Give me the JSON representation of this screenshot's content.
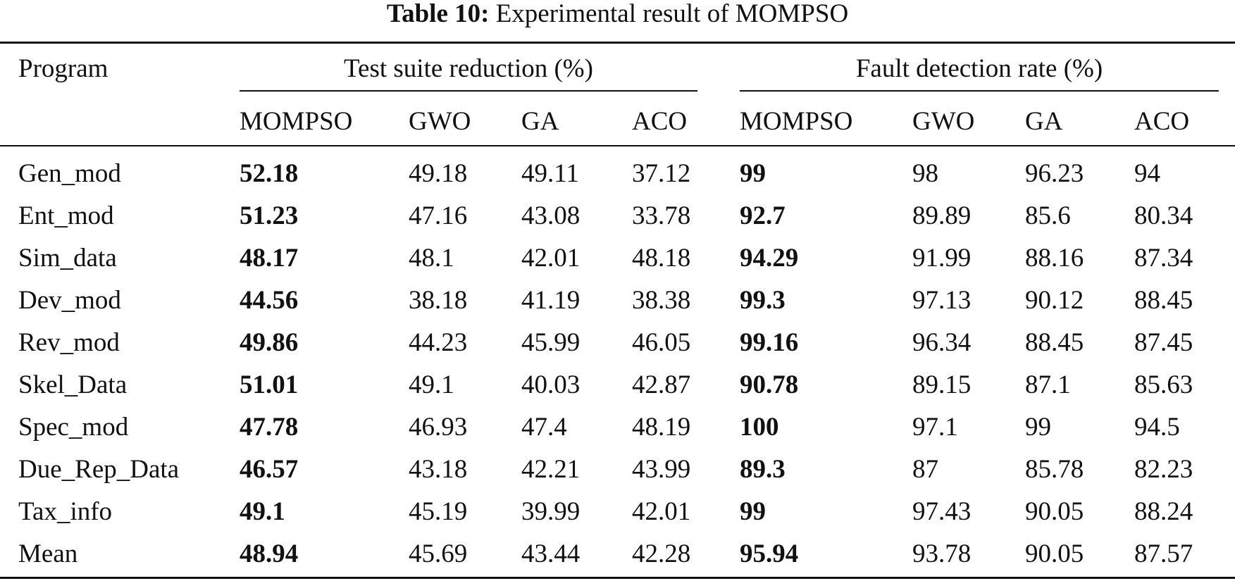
{
  "caption": {
    "label": "Table 10:",
    "text": "Experimental result of MOMPSO"
  },
  "table": {
    "program_header": "Program",
    "groups": [
      {
        "label": "Test suite reduction (%)"
      },
      {
        "label": "Fault detection rate (%)"
      }
    ],
    "subheaders": [
      "MOMPSO",
      "GWO",
      "GA",
      "ACO",
      "MOMPSO",
      "GWO",
      "GA",
      "ACO"
    ],
    "rows": [
      {
        "program": "Gen_mod",
        "values": [
          "52.18",
          "49.18",
          "49.11",
          "37.12",
          "99",
          "98",
          "96.23",
          "94"
        ]
      },
      {
        "program": "Ent_mod",
        "values": [
          "51.23",
          "47.16",
          "43.08",
          "33.78",
          "92.7",
          "89.89",
          "85.6",
          "80.34"
        ]
      },
      {
        "program": "Sim_data",
        "values": [
          "48.17",
          "48.1",
          "42.01",
          "48.18",
          "94.29",
          "91.99",
          "88.16",
          "87.34"
        ]
      },
      {
        "program": "Dev_mod",
        "values": [
          "44.56",
          "38.18",
          "41.19",
          "38.38",
          "99.3",
          "97.13",
          "90.12",
          "88.45"
        ]
      },
      {
        "program": "Rev_mod",
        "values": [
          "49.86",
          "44.23",
          "45.99",
          "46.05",
          "99.16",
          "96.34",
          "88.45",
          "87.45"
        ]
      },
      {
        "program": "Skel_Data",
        "values": [
          "51.01",
          "49.1",
          "40.03",
          "42.87",
          "90.78",
          "89.15",
          "87.1",
          "85.63"
        ]
      },
      {
        "program": "Spec_mod",
        "values": [
          "47.78",
          "46.93",
          "47.4",
          "48.19",
          "100",
          "97.1",
          "99",
          "94.5"
        ]
      },
      {
        "program": "Due_Rep_Data",
        "values": [
          "46.57",
          "43.18",
          "42.21",
          "43.99",
          "89.3",
          "87",
          "85.78",
          "82.23"
        ]
      },
      {
        "program": "Tax_info",
        "values": [
          "49.1",
          "45.19",
          "39.99",
          "42.01",
          "99",
          "97.43",
          "90.05",
          "88.24"
        ]
      },
      {
        "program": "Mean",
        "values": [
          "48.94",
          "45.69",
          "43.44",
          "42.28",
          "95.94",
          "93.78",
          "90.05",
          "87.57"
        ]
      }
    ],
    "bold_columns": [
      0,
      4
    ]
  }
}
